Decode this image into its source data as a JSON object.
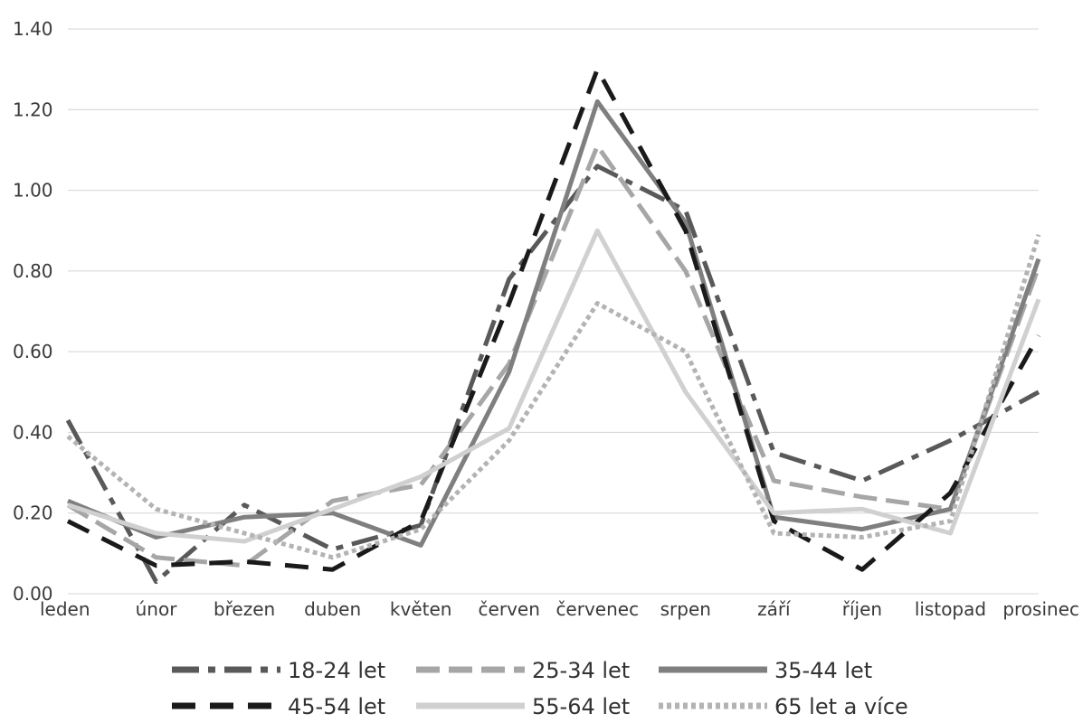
{
  "chart_data": {
    "type": "line",
    "categories": [
      "leden",
      "únor",
      "březen",
      "duben",
      "květen",
      "červen",
      "červenec",
      "srpen",
      "září",
      "říjen",
      "listopad",
      "prosinec"
    ],
    "ylim": [
      0,
      1.4
    ],
    "yticks": [
      "0.00",
      "0.20",
      "0.40",
      "0.60",
      "0.80",
      "1.00",
      "1.20",
      "1.40"
    ],
    "grid": true,
    "legend_position": "bottom",
    "series": [
      {
        "name": "18-24 let",
        "color": "#595959",
        "dash": "dash-dot",
        "values": [
          0.43,
          0.03,
          0.22,
          0.11,
          0.17,
          0.78,
          1.06,
          0.95,
          0.35,
          0.28,
          0.38,
          0.5
        ]
      },
      {
        "name": "25-34 let",
        "color": "#a6a6a6",
        "dash": "dash",
        "values": [
          0.22,
          0.09,
          0.07,
          0.23,
          0.27,
          0.57,
          1.11,
          0.8,
          0.28,
          0.24,
          0.21,
          0.81
        ]
      },
      {
        "name": "35-44 let",
        "color": "#7f7f7f",
        "dash": "solid",
        "values": [
          0.23,
          0.14,
          0.19,
          0.2,
          0.12,
          0.55,
          1.22,
          0.92,
          0.19,
          0.16,
          0.21,
          0.83
        ]
      },
      {
        "name": "45-54 let",
        "color": "#1a1a1a",
        "dash": "long-dash",
        "values": [
          0.18,
          0.07,
          0.08,
          0.06,
          0.18,
          0.72,
          1.3,
          0.9,
          0.18,
          0.06,
          0.25,
          0.64
        ]
      },
      {
        "name": "55-64 let",
        "color": "#d0d0d0",
        "dash": "solid",
        "values": [
          0.22,
          0.15,
          0.13,
          0.21,
          0.29,
          0.41,
          0.9,
          0.5,
          0.2,
          0.21,
          0.15,
          0.73
        ]
      },
      {
        "name": "65 let a více",
        "color": "#b3b3b3",
        "dash": "dot",
        "values": [
          0.39,
          0.21,
          0.15,
          0.09,
          0.16,
          0.38,
          0.72,
          0.6,
          0.15,
          0.14,
          0.18,
          0.89
        ]
      }
    ]
  }
}
